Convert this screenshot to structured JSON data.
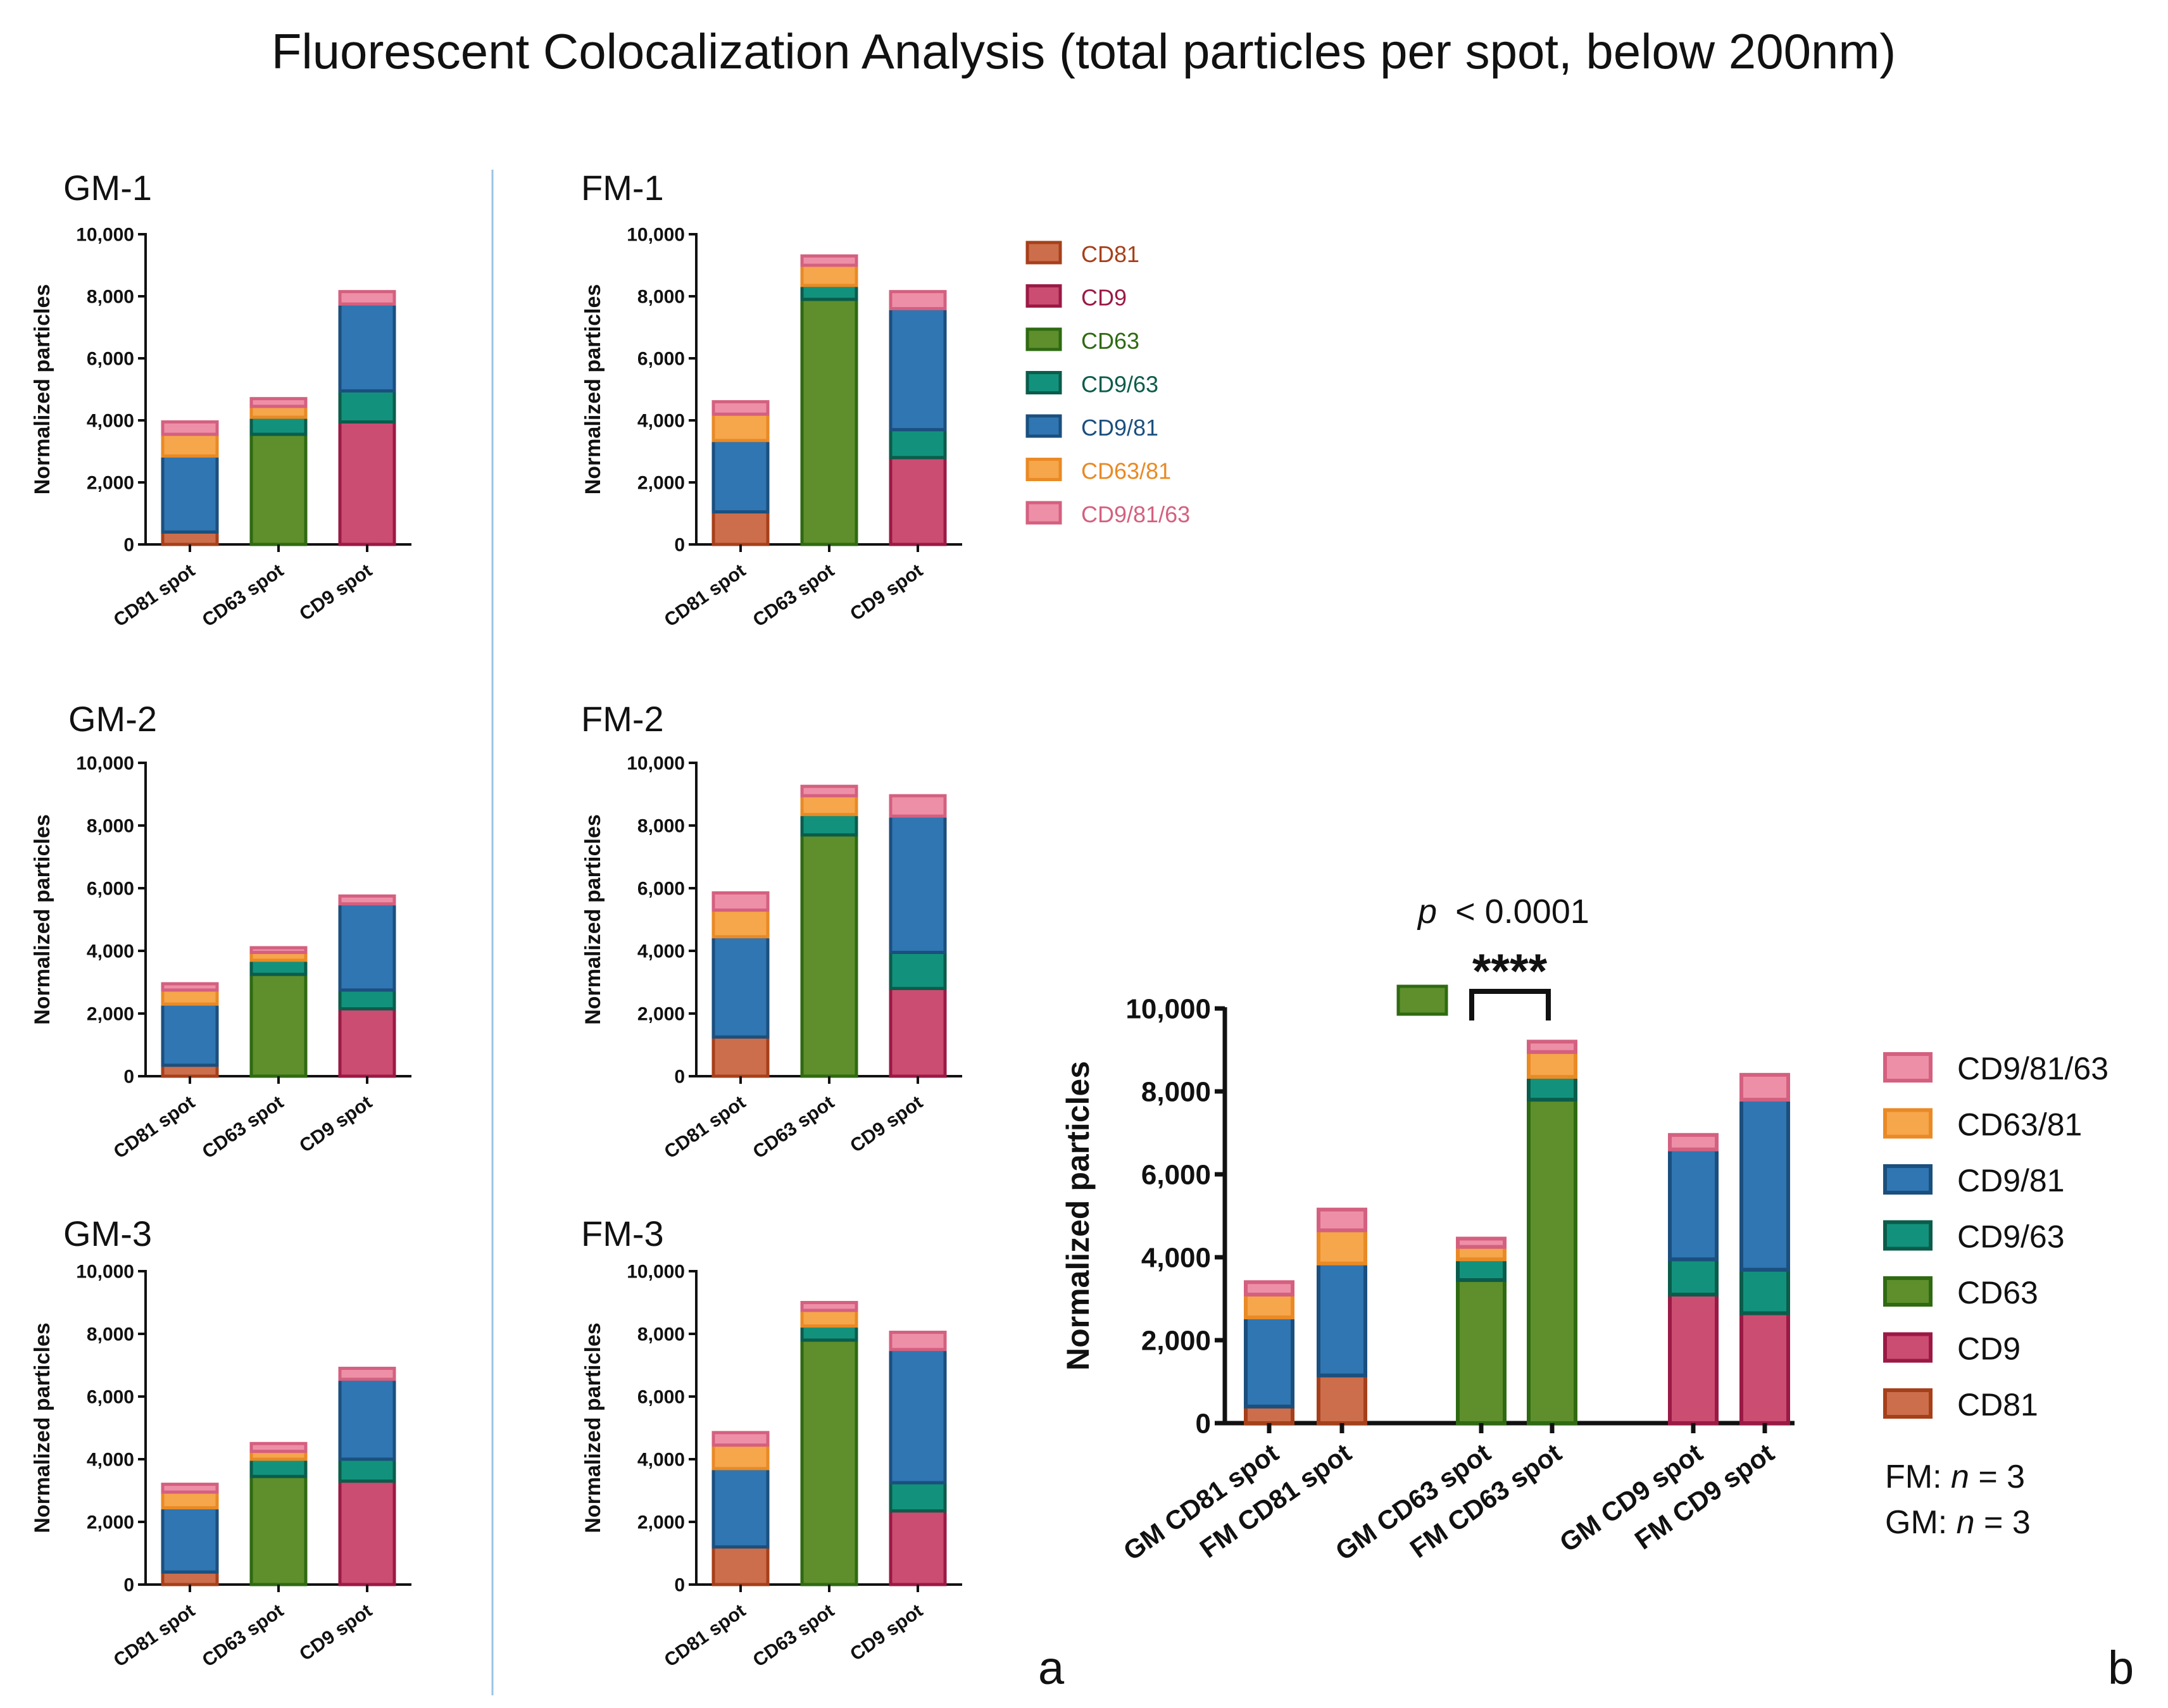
{
  "figure_title": "Fluorescent Colocalization Analysis (total particles per spot, below 200nm)",
  "panel_letters": [
    "a",
    "b"
  ],
  "series_colors": {
    "CD81": {
      "fill": "#cc6e4c",
      "stroke": "#a6401a"
    },
    "CD9": {
      "fill": "#cc4d72",
      "stroke": "#9b1a45"
    },
    "CD63": {
      "fill": "#5e8f2c",
      "stroke": "#2f6a12"
    },
    "CD9/63": {
      "fill": "#12927c",
      "stroke": "#0b5c4b"
    },
    "CD9/81": {
      "fill": "#2f76b2",
      "stroke": "#1b4f7e"
    },
    "CD63/81": {
      "fill": "#f6a64b",
      "stroke": "#e98a25"
    },
    "CD9/81/63": {
      "fill": "#ee8fa8",
      "stroke": "#d4607f"
    }
  },
  "legend_a": {
    "items": [
      "CD81",
      "CD9",
      "CD63",
      "CD9/63",
      "CD9/81",
      "CD63/81",
      "CD9/81/63"
    ]
  },
  "legend_b": {
    "items": [
      "CD9/81/63",
      "CD63/81",
      "CD9/81",
      "CD9/63",
      "CD63",
      "CD9",
      "CD81"
    ],
    "n_notes": [
      {
        "group": "FM:",
        "n_label": "n",
        "value": "= 3"
      },
      {
        "group": "GM:",
        "n_label": "n",
        "value": "= 3"
      }
    ]
  },
  "significance": {
    "p_label": "p",
    "p_rest": "< 0.0001",
    "stars": "****"
  },
  "chart_data": [
    {
      "type": "bar",
      "stacked": true,
      "title": "GM-1",
      "ylabel": "Normalized particles",
      "ylim": [
        0,
        10000
      ],
      "yticks": [
        "0",
        "2,000",
        "4,000",
        "6,000",
        "8,000",
        "10,000"
      ],
      "categories": [
        "CD81 spot",
        "CD63 spot",
        "CD9 spot"
      ],
      "series": [
        {
          "name": "CD81",
          "values": [
            400,
            0,
            0
          ]
        },
        {
          "name": "CD9",
          "values": [
            0,
            0,
            3950
          ]
        },
        {
          "name": "CD63",
          "values": [
            0,
            3550,
            0
          ]
        },
        {
          "name": "CD9/63",
          "values": [
            0,
            550,
            1000
          ]
        },
        {
          "name": "CD9/81",
          "values": [
            2450,
            0,
            2800
          ]
        },
        {
          "name": "CD63/81",
          "values": [
            700,
            350,
            0
          ]
        },
        {
          "name": "CD9/81/63",
          "values": [
            400,
            250,
            400
          ]
        }
      ]
    },
    {
      "type": "bar",
      "stacked": true,
      "title": "FM-1",
      "ylabel": "Normalized particles",
      "ylim": [
        0,
        10000
      ],
      "yticks": [
        "0",
        "2,000",
        "4,000",
        "6,000",
        "8,000",
        "10,000"
      ],
      "categories": [
        "CD81 spot",
        "CD63 spot",
        "CD9 spot"
      ],
      "series": [
        {
          "name": "CD81",
          "values": [
            1050,
            0,
            0
          ]
        },
        {
          "name": "CD9",
          "values": [
            0,
            0,
            2800
          ]
        },
        {
          "name": "CD63",
          "values": [
            0,
            7900,
            0
          ]
        },
        {
          "name": "CD9/63",
          "values": [
            0,
            450,
            900
          ]
        },
        {
          "name": "CD9/81",
          "values": [
            2300,
            0,
            3900
          ]
        },
        {
          "name": "CD63/81",
          "values": [
            850,
            650,
            0
          ]
        },
        {
          "name": "CD9/81/63",
          "values": [
            400,
            300,
            550
          ]
        }
      ]
    },
    {
      "type": "bar",
      "stacked": true,
      "title": "GM-2",
      "ylabel": "Normalized particles",
      "ylim": [
        0,
        10000
      ],
      "yticks": [
        "0",
        "2,000",
        "4,000",
        "6,000",
        "8,000",
        "10,000"
      ],
      "categories": [
        "CD81 spot",
        "CD63 spot",
        "CD9 spot"
      ],
      "series": [
        {
          "name": "CD81",
          "values": [
            350,
            0,
            0
          ]
        },
        {
          "name": "CD9",
          "values": [
            0,
            0,
            2150
          ]
        },
        {
          "name": "CD63",
          "values": [
            0,
            3250,
            0
          ]
        },
        {
          "name": "CD9/63",
          "values": [
            0,
            450,
            600
          ]
        },
        {
          "name": "CD9/81",
          "values": [
            1950,
            0,
            2750
          ]
        },
        {
          "name": "CD63/81",
          "values": [
            450,
            250,
            0
          ]
        },
        {
          "name": "CD9/81/63",
          "values": [
            200,
            150,
            250
          ]
        }
      ]
    },
    {
      "type": "bar",
      "stacked": true,
      "title": "FM-2",
      "ylabel": "Normalized particles",
      "ylim": [
        0,
        10000
      ],
      "yticks": [
        "0",
        "2,000",
        "4,000",
        "6,000",
        "8,000",
        "10,000"
      ],
      "categories": [
        "CD81 spot",
        "CD63 spot",
        "CD9 spot"
      ],
      "series": [
        {
          "name": "CD81",
          "values": [
            1250,
            0,
            0
          ]
        },
        {
          "name": "CD9",
          "values": [
            0,
            0,
            2800
          ]
        },
        {
          "name": "CD63",
          "values": [
            0,
            7700,
            0
          ]
        },
        {
          "name": "CD9/63",
          "values": [
            0,
            650,
            1150
          ]
        },
        {
          "name": "CD9/81",
          "values": [
            3200,
            0,
            4350
          ]
        },
        {
          "name": "CD63/81",
          "values": [
            850,
            600,
            0
          ]
        },
        {
          "name": "CD9/81/63",
          "values": [
            550,
            300,
            650
          ]
        }
      ]
    },
    {
      "type": "bar",
      "stacked": true,
      "title": "GM-3",
      "ylabel": "Normalized particles",
      "ylim": [
        0,
        10000
      ],
      "yticks": [
        "0",
        "2,000",
        "4,000",
        "6,000",
        "8,000",
        "10,000"
      ],
      "categories": [
        "CD81 spot",
        "CD63 spot",
        "CD9 spot"
      ],
      "series": [
        {
          "name": "CD81",
          "values": [
            400,
            0,
            0
          ]
        },
        {
          "name": "CD9",
          "values": [
            0,
            0,
            3300
          ]
        },
        {
          "name": "CD63",
          "values": [
            0,
            3450,
            0
          ]
        },
        {
          "name": "CD9/63",
          "values": [
            0,
            550,
            700
          ]
        },
        {
          "name": "CD9/81",
          "values": [
            2050,
            0,
            2550
          ]
        },
        {
          "name": "CD63/81",
          "values": [
            500,
            250,
            0
          ]
        },
        {
          "name": "CD9/81/63",
          "values": [
            250,
            250,
            350
          ]
        }
      ]
    },
    {
      "type": "bar",
      "stacked": true,
      "title": "FM-3",
      "ylabel": "Normalized particles",
      "ylim": [
        0,
        10000
      ],
      "yticks": [
        "0",
        "2,000",
        "4,000",
        "6,000",
        "8,000",
        "10,000"
      ],
      "categories": [
        "CD81 spot",
        "CD63 spot",
        "CD9 spot"
      ],
      "series": [
        {
          "name": "CD81",
          "values": [
            1200,
            0,
            0
          ]
        },
        {
          "name": "CD9",
          "values": [
            0,
            0,
            2350
          ]
        },
        {
          "name": "CD63",
          "values": [
            0,
            7800,
            0
          ]
        },
        {
          "name": "CD9/63",
          "values": [
            0,
            450,
            900
          ]
        },
        {
          "name": "CD9/81",
          "values": [
            2500,
            0,
            4250
          ]
        },
        {
          "name": "CD63/81",
          "values": [
            750,
            500,
            0
          ]
        },
        {
          "name": "CD9/81/63",
          "values": [
            400,
            250,
            550
          ]
        }
      ]
    },
    {
      "type": "bar",
      "stacked": true,
      "title": "",
      "ylabel": "Normalized particles",
      "ylim": [
        0,
        10000
      ],
      "yticks": [
        "0",
        "2,000",
        "4,000",
        "6,000",
        "8,000",
        "10,000"
      ],
      "categories": [
        "GM CD81 spot",
        "FM CD81 spot",
        "GM CD63 spot",
        "FM CD63 spot",
        "GM CD9 spot",
        "FM CD9 spot"
      ],
      "series": [
        {
          "name": "CD81",
          "values": [
            400,
            1150,
            0,
            0,
            0,
            0
          ]
        },
        {
          "name": "CD9",
          "values": [
            0,
            0,
            0,
            0,
            3100,
            2650
          ]
        },
        {
          "name": "CD63",
          "values": [
            0,
            0,
            3450,
            7800,
            0,
            0
          ]
        },
        {
          "name": "CD9/63",
          "values": [
            0,
            0,
            500,
            550,
            850,
            1050
          ]
        },
        {
          "name": "CD9/81",
          "values": [
            2150,
            2700,
            0,
            0,
            2650,
            4100
          ]
        },
        {
          "name": "CD63/81",
          "values": [
            550,
            800,
            300,
            600,
            0,
            0
          ]
        },
        {
          "name": "CD9/81/63",
          "values": [
            300,
            500,
            200,
            250,
            350,
            600
          ]
        }
      ]
    }
  ]
}
